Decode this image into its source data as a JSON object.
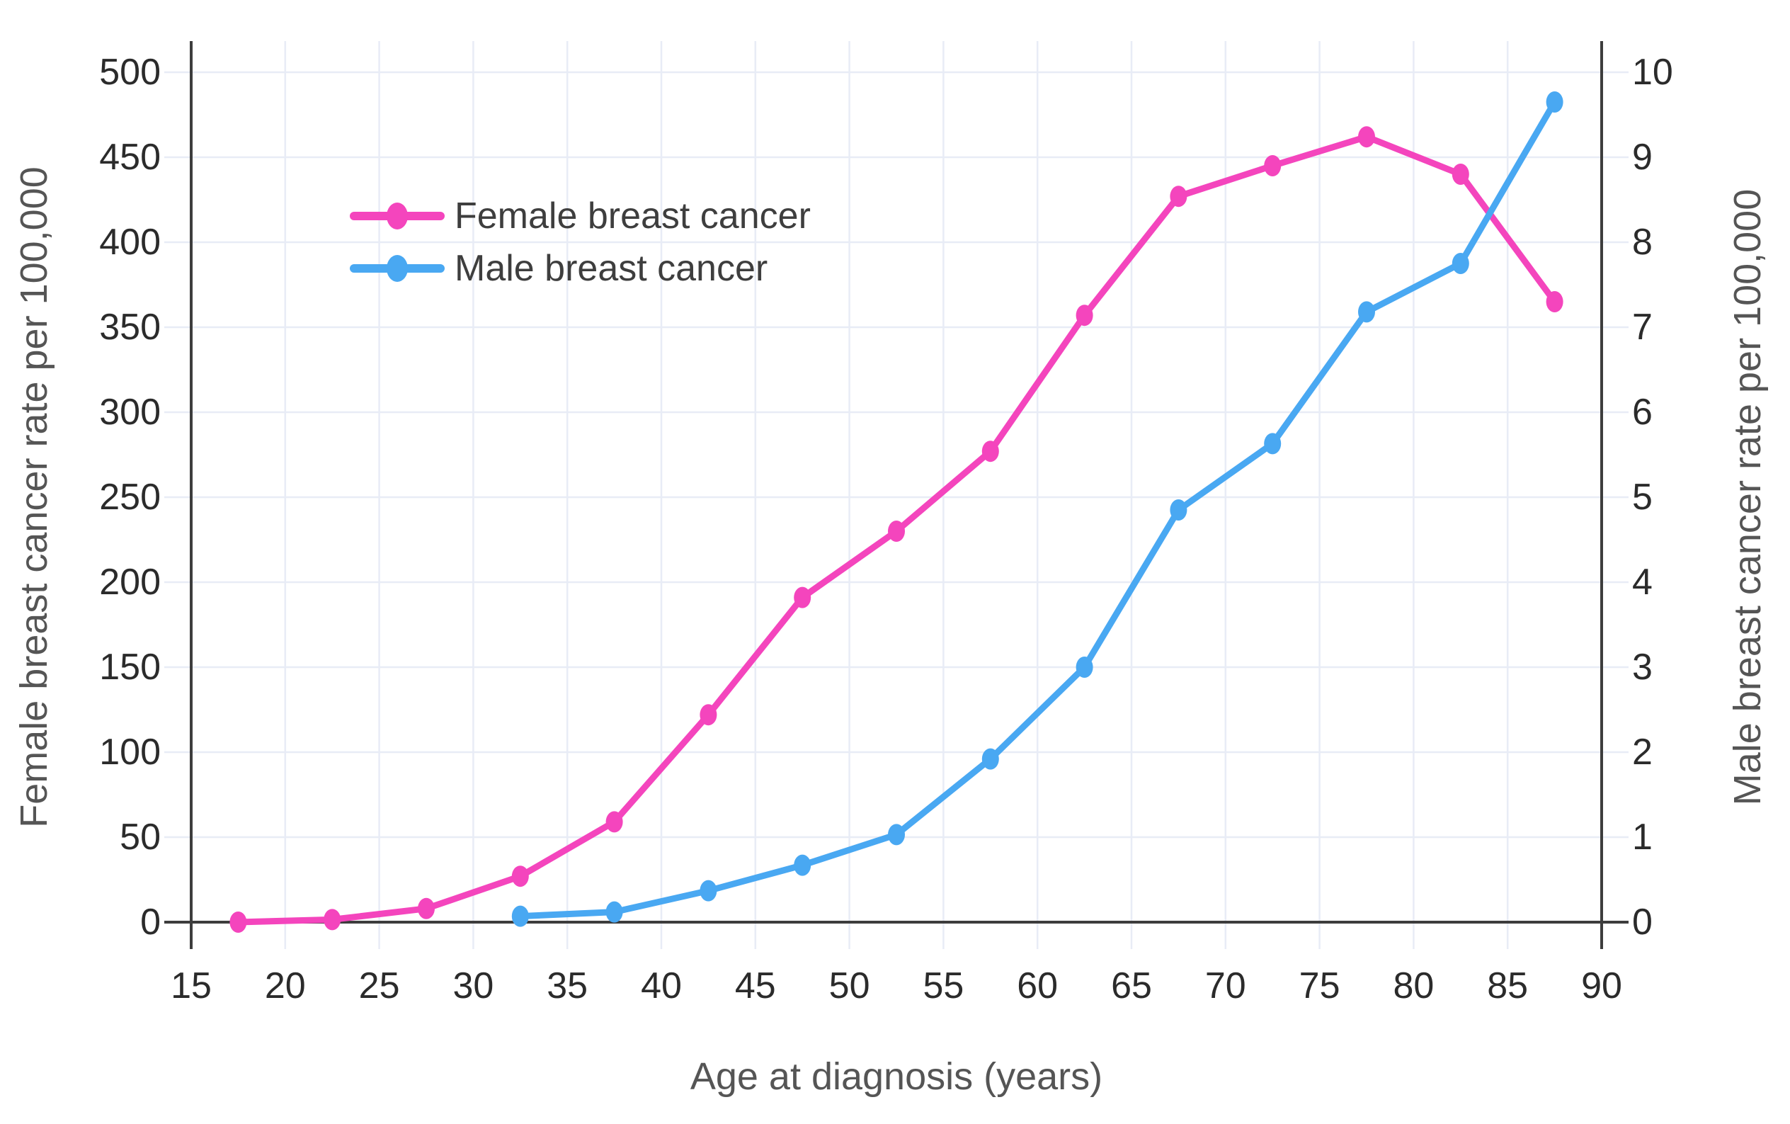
{
  "chart_data": {
    "type": "line",
    "title": "",
    "x_label": "Age at diagnosis (years)",
    "y_left_label": "Female breast cancer rate per 100,000",
    "y_right_label": "Male breast cancer rate per 100,000",
    "x_range": [
      15,
      90
    ],
    "y_left_range": [
      0,
      500
    ],
    "y_right_range": [
      0,
      10
    ],
    "x_ticks": [
      15,
      20,
      25,
      30,
      35,
      40,
      45,
      50,
      55,
      60,
      65,
      70,
      75,
      80,
      85,
      90
    ],
    "y_left_ticks": [
      0,
      50,
      100,
      150,
      200,
      250,
      300,
      350,
      400,
      450,
      500
    ],
    "y_right_ticks": [
      0,
      1,
      2,
      3,
      4,
      5,
      6,
      7,
      8,
      9,
      10
    ],
    "grid": true,
    "legend_position": "inside-upper-left",
    "series": [
      {
        "name": "Female breast cancer",
        "axis": "left",
        "color": "#f445bd",
        "marker": "ellipse",
        "x": [
          17.5,
          22.5,
          27.5,
          32.5,
          37.5,
          42.5,
          47.5,
          52.5,
          57.5,
          62.5,
          67.5,
          72.5,
          77.5,
          82.5,
          87.5
        ],
        "values": [
          0,
          1.5,
          8,
          27,
          59,
          122,
          191,
          230,
          277,
          357,
          427,
          445,
          462,
          440,
          365
        ]
      },
      {
        "name": "Male breast cancer",
        "axis": "right",
        "color": "#49a8f2",
        "marker": "ellipse",
        "x": [
          32.5,
          37.5,
          42.5,
          47.5,
          52.5,
          57.5,
          62.5,
          67.5,
          72.5,
          77.5,
          82.5,
          87.5
        ],
        "values": [
          0.07,
          0.12,
          0.37,
          0.67,
          1.03,
          1.92,
          3.0,
          4.85,
          5.63,
          7.18,
          7.75,
          9.65
        ]
      }
    ]
  },
  "styles": {
    "background": "#ffffff",
    "grid_color": "#e8ecf6",
    "axis_color": "#3d3d3d",
    "tick_label_color": "#2b2b2b",
    "axis_title_color": "#555555",
    "legend_text_color": "#3e3e3e"
  }
}
